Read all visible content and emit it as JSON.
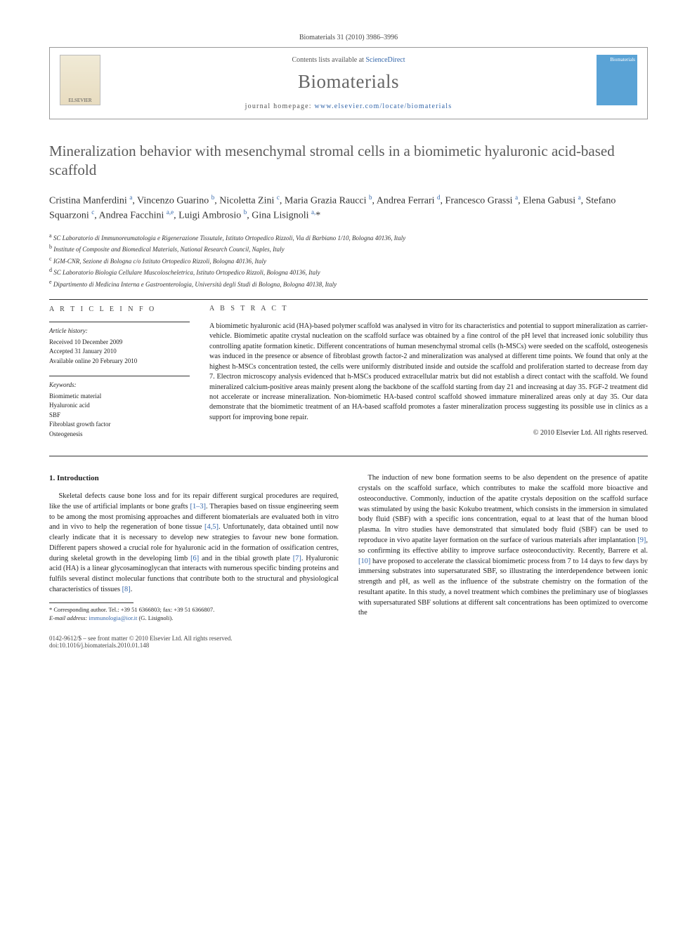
{
  "journal_ref": "Biomaterials 31 (2010) 3986–3996",
  "header": {
    "contents_prefix": "Contents lists available at ",
    "contents_link": "ScienceDirect",
    "journal": "Biomaterials",
    "homepage_prefix": "journal homepage: ",
    "homepage_link": "www.elsevier.com/locate/biomaterials",
    "publisher_logo_text": "ELSEVIER",
    "cover_logo_text": "Biomaterials"
  },
  "title": "Mineralization behavior with mesenchymal stromal cells in a biomimetic hyaluronic acid-based scaffold",
  "authors_html": "Cristina Manferdini <sup>a</sup>, Vincenzo Guarino <sup>b</sup>, Nicoletta Zini <sup>c</sup>, Maria Grazia Raucci <sup>b</sup>, Andrea Ferrari <sup>d</sup>, Francesco Grassi <sup>a</sup>, Elena Gabusi <sup>a</sup>, Stefano Squarzoni <sup>c</sup>, Andrea Facchini <sup>a,e</sup>, Luigi Ambrosio <sup>b</sup>, Gina Lisignoli <sup>a,</sup>*",
  "affiliations": [
    "a SC Laboratorio di Immunoreumatologia e Rigenerazione Tissutale, Istituto Ortopedico Rizzoli, Via di Barbiano 1/10, Bologna 40136, Italy",
    "b Institute of Composite and Biomedical Materials, National Research Council, Naples, Italy",
    "c IGM-CNR, Sezione di Bologna c/o Istituto Ortopedico Rizzoli, Bologna 40136, Italy",
    "d SC Laboratorio Biologia Cellulare Muscoloscheletrica, Istituto Ortopedico Rizzoli, Bologna 40136, Italy",
    "e Dipartimento di Medicina Interna e Gastroenterologia, Università degli Studi di Bologna, Bologna 40138, Italy"
  ],
  "article_info": {
    "heading": "A R T I C L E   I N F O",
    "history_heading": "Article history:",
    "history": [
      "Received 10 December 2009",
      "Accepted 31 January 2010",
      "Available online 20 February 2010"
    ],
    "keywords_heading": "Keywords:",
    "keywords": [
      "Biomimetic material",
      "Hyaluronic acid",
      "SBF",
      "Fibroblast growth factor",
      "Osteogenesis"
    ]
  },
  "abstract": {
    "heading": "A B S T R A C T",
    "text": "A biomimetic hyaluronic acid (HA)-based polymer scaffold was analysed in vitro for its characteristics and potential to support mineralization as carrier-vehicle. Biomimetic apatite crystal nucleation on the scaffold surface was obtained by a fine control of the pH level that increased ionic solubility thus controlling apatite formation kinetic. Different concentrations of human mesenchymal stromal cells (h-MSCs) were seeded on the scaffold, osteogenesis was induced in the presence or absence of fibroblast growth factor-2 and mineralization was analysed at different time points. We found that only at the highest h-MSCs concentration tested, the cells were uniformly distributed inside and outside the scaffold and proliferation started to decrease from day 7. Electron microscopy analysis evidenced that h-MSCs produced extracellular matrix but did not establish a direct contact with the scaffold. We found mineralized calcium-positive areas mainly present along the backbone of the scaffold starting from day 21 and increasing at day 35. FGF-2 treatment did not accelerate or increase mineralization. Non-biomimetic HA-based control scaffold showed immature mineralized areas only at day 35. Our data demonstrate that the biomimetic treatment of an HA-based scaffold promotes a faster mineralization process suggesting its possible use in clinics as a support for improving bone repair.",
    "copyright": "© 2010 Elsevier Ltd. All rights reserved."
  },
  "intro": {
    "heading": "1. Introduction",
    "p1_pre": "Skeletal defects cause bone loss and for its repair different surgical procedures are required, like the use of artificial implants or bone grafts ",
    "p1_ref1": "[1–3]",
    "p1_mid1": ". Therapies based on tissue engineering seem to be among the most promising approaches and different biomaterials are evaluated both in vitro and in vivo to help the regeneration of bone tissue ",
    "p1_ref2": "[4,5]",
    "p1_mid2": ". Unfortunately, data obtained until now clearly indicate that it is necessary to develop new strategies to favour new bone formation. Different papers showed a crucial role for hyaluronic acid in the formation of ossification centres, during skeletal growth in the developing limb ",
    "p1_ref3": "[6]",
    "p1_mid3": " and in the tibial growth plate ",
    "p1_ref4": "[7]",
    "p1_mid4": ". Hyaluronic acid (HA) is a linear glycosaminoglycan that interacts with numerous specific binding proteins and fulfils several distinct molecular functions that contribute both to the structural and physiological characteristics of tissues ",
    "p1_ref5": "[8]",
    "p1_mid5": ".",
    "p2_pre": "The induction of new bone formation seems to be also dependent on the presence of apatite crystals on the scaffold surface, which contributes to make the scaffold more bioactive and osteoconductive. Commonly, induction of the apatite crystals deposition on the scaffold surface was stimulated by using the basic Kokubo treatment, which consists in the immersion in simulated body fluid (SBF) with a specific ions concentration, equal to at least that of the human blood plasma. In vitro studies have demonstrated that simulated body fluid (SBF) can be used to reproduce in vivo apatite layer formation on the surface of various materials after implantation ",
    "p2_ref1": "[9]",
    "p2_mid1": ", so confirming its effective ability to improve surface osteoconductivity. Recently, Barrere et al. ",
    "p2_ref2": "[10]",
    "p2_mid2": " have proposed to accelerate the classical biomimetic process from 7 to 14 days to few days by immersing substrates into supersaturated SBF, so illustrating the interdependence between ionic strength and pH, as well as the influence of the substrate chemistry on the formation of the resultant apatite. In this study, a novel treatment which combines the preliminary use of bioglasses with supersaturated SBF solutions at different salt concentrations has been optimized to overcome the"
  },
  "footnote": {
    "line1_pre": "* Corresponding author. Tel.: ",
    "tel": "+39 51 6366803",
    "line1_mid": "; fax: ",
    "fax": "+39 51 6366807",
    "line1_end": ".",
    "line2_pre": "E-mail address: ",
    "email": "immunologia@ior.it",
    "line2_end": " (G. Lisignoli)."
  },
  "footer": {
    "left_line1": "0142-9612/$ – see front matter © 2010 Elsevier Ltd. All rights reserved.",
    "left_line2": "doi:10.1016/j.biomaterials.2010.01.148"
  }
}
